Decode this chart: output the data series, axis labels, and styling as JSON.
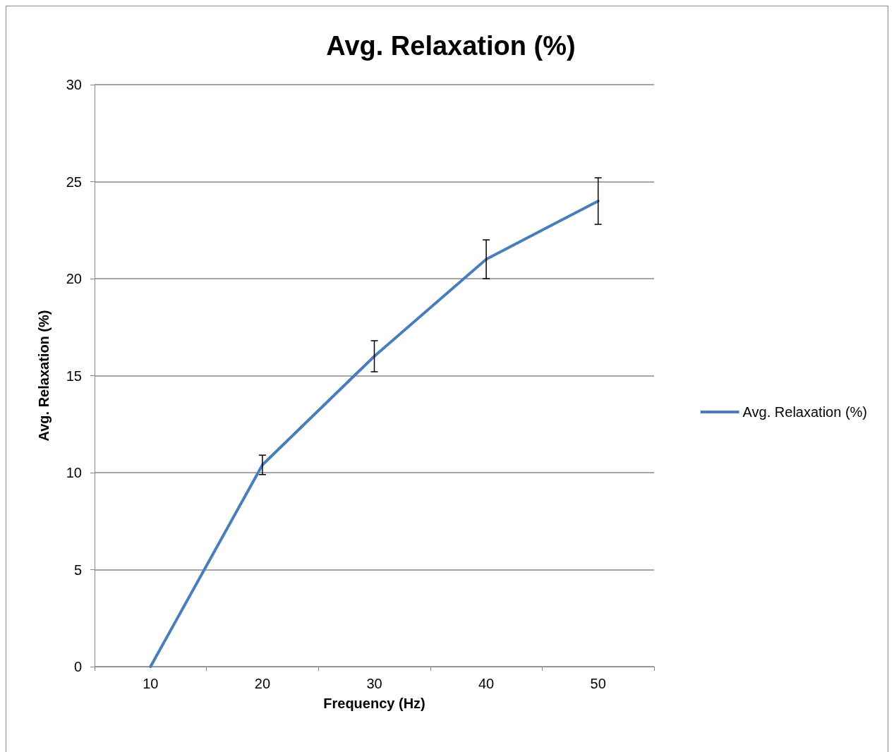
{
  "chart_data": {
    "type": "line",
    "title": "Avg. Relaxation (%)",
    "xlabel": "Frequency (Hz)",
    "ylabel": "Avg. Relaxation (%)",
    "categories": [
      "10",
      "20",
      "30",
      "40",
      "50"
    ],
    "series": [
      {
        "name": "Avg. Relaxation (%)",
        "color": "#4a7ebb",
        "values": [
          0,
          10.4,
          16,
          21,
          24
        ],
        "errors": [
          null,
          0.5,
          0.8,
          1.0,
          1.2
        ]
      }
    ],
    "ylim": [
      0,
      30
    ],
    "yticks": [
      0,
      5,
      10,
      15,
      20,
      25,
      30
    ],
    "grid": "y",
    "legend": "right",
    "marker": "none",
    "line_style": "solid"
  }
}
